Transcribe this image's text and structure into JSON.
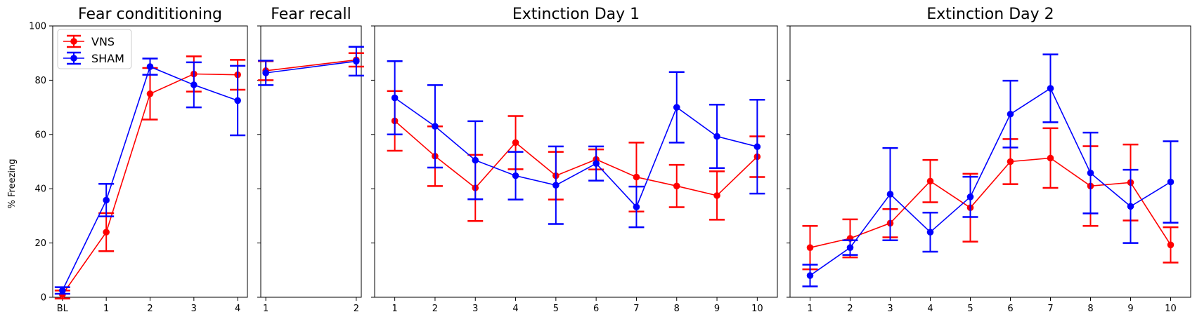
{
  "chart_data": {
    "type": "line",
    "ylabel": "% Freezing",
    "ylim": [
      0,
      100
    ],
    "yticks": [
      0,
      20,
      40,
      60,
      80,
      100
    ],
    "legend": {
      "placement": "top-left",
      "panel": 0,
      "entries": [
        "VNS",
        "SHAM"
      ]
    },
    "series_styles": [
      {
        "name": "VNS",
        "color": "#ff0000"
      },
      {
        "name": "SHAM",
        "color": "#0000ff"
      }
    ],
    "panels": [
      {
        "title": "Fear condititioning",
        "categories": [
          "BL",
          "1",
          "2",
          "3",
          "4"
        ],
        "series": [
          {
            "name": "VNS",
            "values": [
              1.0,
              24.0,
              75.0,
              82.3,
              82.0
            ],
            "err": [
              1.5,
              7.0,
              9.5,
              6.5,
              5.5
            ]
          },
          {
            "name": "SHAM",
            "values": [
              2.5,
              35.8,
              85.0,
              78.3,
              72.5
            ],
            "err": [
              1.2,
              6.0,
              3.0,
              8.3,
              12.8
            ]
          }
        ]
      },
      {
        "title": "Fear recall",
        "categories": [
          "1",
          "2"
        ],
        "series": [
          {
            "name": "VNS",
            "values": [
              83.5,
              87.5
            ],
            "err": [
              3.5,
              2.5
            ]
          },
          {
            "name": "SHAM",
            "values": [
              82.7,
              87.0
            ],
            "err": [
              4.5,
              5.3
            ]
          }
        ]
      },
      {
        "title": "Extinction Day 1",
        "categories": [
          "1",
          "2",
          "3",
          "4",
          "5",
          "6",
          "7",
          "8",
          "9",
          "10"
        ],
        "series": [
          {
            "name": "VNS",
            "values": [
              65.0,
              52.0,
              40.3,
              57.0,
              44.8,
              50.8,
              44.3,
              41.0,
              37.5,
              51.8
            ],
            "err": [
              11.0,
              11.0,
              12.2,
              9.8,
              8.8,
              3.7,
              12.7,
              7.8,
              8.9,
              7.5
            ]
          },
          {
            "name": "SHAM",
            "values": [
              73.5,
              63.0,
              50.5,
              44.8,
              41.3,
              49.3,
              33.3,
              70.0,
              59.3,
              55.5
            ],
            "err": [
              13.5,
              15.2,
              14.4,
              8.8,
              14.3,
              6.3,
              7.5,
              13.0,
              11.7,
              17.3
            ]
          }
        ]
      },
      {
        "title": "Extinction Day 2",
        "categories": [
          "1",
          "2",
          "3",
          "4",
          "5",
          "6",
          "7",
          "8",
          "9",
          "10"
        ],
        "series": [
          {
            "name": "VNS",
            "values": [
              18.3,
              21.7,
              27.3,
              42.8,
              33.0,
              50.0,
              51.3,
              41.0,
              42.3,
              19.3
            ],
            "err": [
              8.0,
              7.0,
              5.2,
              7.8,
              12.5,
              8.3,
              11.0,
              14.7,
              14.0,
              6.5
            ]
          },
          {
            "name": "SHAM",
            "values": [
              8.0,
              18.3,
              38.0,
              24.0,
              37.0,
              67.5,
              77.0,
              45.8,
              33.5,
              42.5
            ],
            "err": [
              4.0,
              2.7,
              17.0,
              7.2,
              7.4,
              12.3,
              12.5,
              14.9,
              13.5,
              15.0
            ]
          }
        ]
      }
    ]
  }
}
